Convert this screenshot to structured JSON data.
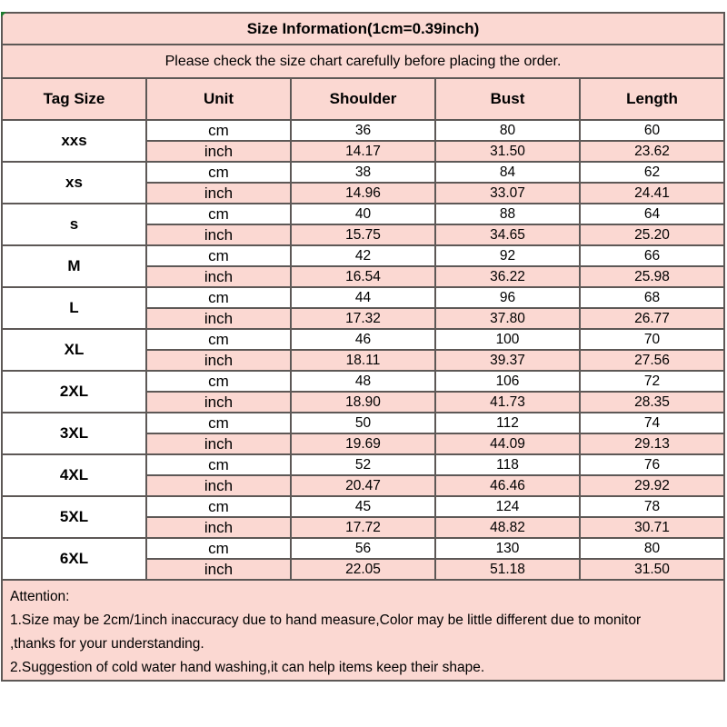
{
  "table": {
    "title": "Size Information(1cm=0.39inch)",
    "subtitle": "Please check the size chart carefully before placing the order.",
    "columns": [
      "Tag Size",
      "Unit",
      "Shoulder",
      "Bust",
      "Length"
    ],
    "units": [
      "cm",
      "inch"
    ],
    "sizes": [
      {
        "tag": "xxs",
        "cm": [
          "36",
          "80",
          "60"
        ],
        "inch": [
          "14.17",
          "31.50",
          "23.62"
        ]
      },
      {
        "tag": "xs",
        "cm": [
          "38",
          "84",
          "62"
        ],
        "inch": [
          "14.96",
          "33.07",
          "24.41"
        ]
      },
      {
        "tag": "s",
        "cm": [
          "40",
          "88",
          "64"
        ],
        "inch": [
          "15.75",
          "34.65",
          "25.20"
        ]
      },
      {
        "tag": "M",
        "cm": [
          "42",
          "92",
          "66"
        ],
        "inch": [
          "16.54",
          "36.22",
          "25.98"
        ]
      },
      {
        "tag": "L",
        "cm": [
          "44",
          "96",
          "68"
        ],
        "inch": [
          "17.32",
          "37.80",
          "26.77"
        ]
      },
      {
        "tag": "XL",
        "cm": [
          "46",
          "100",
          "70"
        ],
        "inch": [
          "18.11",
          "39.37",
          "27.56"
        ]
      },
      {
        "tag": "2XL",
        "cm": [
          "48",
          "106",
          "72"
        ],
        "inch": [
          "18.90",
          "41.73",
          "28.35"
        ]
      },
      {
        "tag": "3XL",
        "cm": [
          "50",
          "112",
          "74"
        ],
        "inch": [
          "19.69",
          "44.09",
          "29.13"
        ]
      },
      {
        "tag": "4XL",
        "cm": [
          "52",
          "118",
          "76"
        ],
        "inch": [
          "20.47",
          "46.46",
          "29.92"
        ]
      },
      {
        "tag": "5XL",
        "cm": [
          "45",
          "124",
          "78"
        ],
        "inch": [
          "17.72",
          "48.82",
          "30.71"
        ]
      },
      {
        "tag": "6XL",
        "cm": [
          "56",
          "130",
          "80"
        ],
        "inch": [
          "22.05",
          "51.18",
          "31.50"
        ]
      }
    ]
  },
  "attention": {
    "heading": "Attention:",
    "lines": [
      "1.Size may be 2cm/1inch inaccuracy due to hand measure,Color may be little different due to monitor",
      ",thanks for your understanding.",
      "2.Suggestion of cold water hand washing,it can help items keep their shape."
    ]
  },
  "colors": {
    "row_pink": "#fbd8d2",
    "border_gray": "#5d5856",
    "text_black": "#000000",
    "background_white": "#ffffff",
    "corner_artifact_green": "#1e7a2e"
  }
}
